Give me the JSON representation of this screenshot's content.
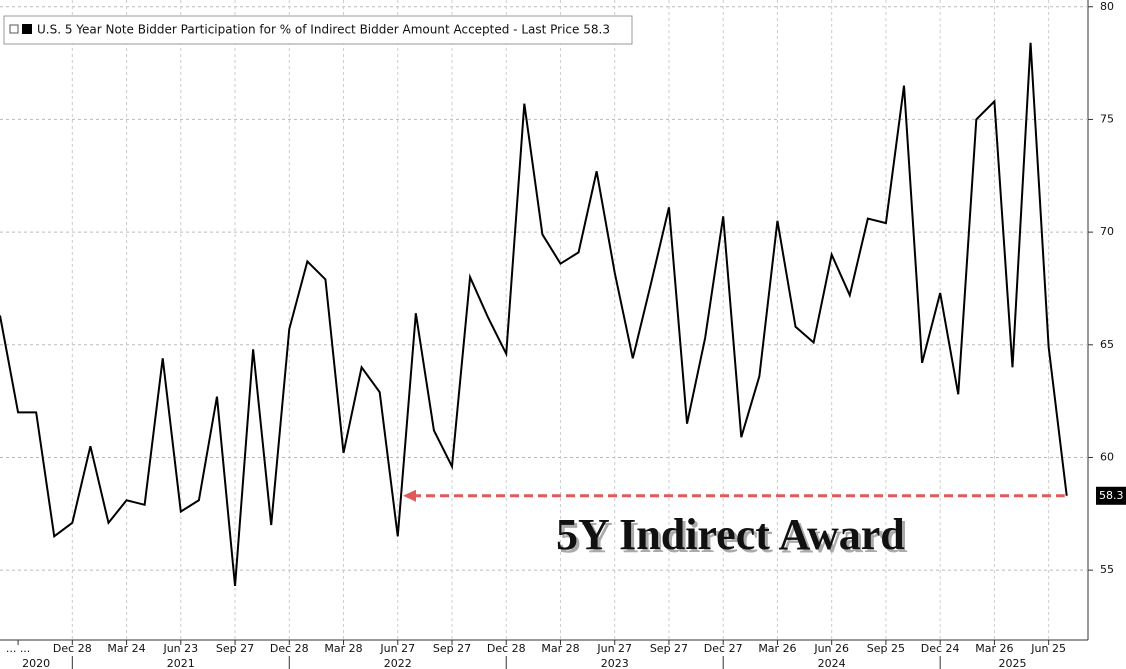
{
  "chart_data": {
    "type": "line",
    "series": [
      {
        "name": "U.S. 5 Year Note Bidder Participation for % of Indirect Bidder Amount Accepted - Last Price 58.3",
        "color": "#000000",
        "values": [
          66.3,
          62.0,
          62.0,
          56.5,
          57.1,
          60.5,
          57.1,
          58.1,
          57.9,
          64.4,
          57.6,
          58.1,
          62.7,
          54.3,
          64.8,
          57.0,
          65.7,
          68.7,
          67.9,
          60.2,
          64.0,
          62.9,
          56.5,
          66.4,
          61.2,
          59.6,
          68.0,
          66.2,
          64.6,
          75.7,
          69.9,
          68.6,
          69.1,
          72.7,
          68.2,
          64.4,
          67.7,
          71.1,
          61.5,
          65.3,
          70.7,
          60.9,
          63.6,
          70.5,
          65.8,
          65.1,
          69.0,
          67.2,
          70.6,
          70.4,
          76.5,
          64.2,
          67.3,
          62.8,
          75.0,
          75.8,
          64.0,
          78.4,
          64.9,
          58.3
        ]
      }
    ],
    "categories": [
      null,
      "... ...",
      null,
      null,
      "Dec 28",
      null,
      null,
      "Mar 24",
      null,
      null,
      "Jun 23",
      null,
      null,
      "Sep 27",
      null,
      null,
      "Dec 28",
      null,
      null,
      "Mar 28",
      null,
      null,
      "Jun 27",
      null,
      null,
      "Sep 27",
      null,
      null,
      "Dec 28",
      null,
      null,
      "Mar 28",
      null,
      null,
      "Jun 27",
      null,
      null,
      "Sep 27",
      null,
      null,
      "Dec 27",
      null,
      null,
      "Mar 26",
      null,
      null,
      "Jun 26",
      null,
      null,
      "Sep 25",
      null,
      null,
      "Dec 24",
      null,
      null,
      "Mar 26",
      null,
      null,
      "Jun 25",
      null
    ],
    "year_categories": [
      null,
      null,
      "2020",
      null,
      null,
      null,
      null,
      null,
      null,
      null,
      "2021",
      null,
      null,
      null,
      null,
      null,
      null,
      null,
      null,
      null,
      null,
      null,
      "2022",
      null,
      null,
      null,
      null,
      null,
      null,
      null,
      null,
      null,
      null,
      null,
      "2023",
      null,
      null,
      null,
      null,
      null,
      null,
      null,
      null,
      null,
      null,
      null,
      "2024",
      null,
      null,
      null,
      null,
      null,
      null,
      null,
      null,
      null,
      "2025",
      null,
      null,
      null
    ],
    "ylim": [
      51.9,
      80.3
    ],
    "yticks": [
      55,
      60,
      65,
      70,
      75,
      80
    ],
    "grid": true,
    "last_value_label": "58.3",
    "annotation": "5Y Indirect Award",
    "annotation_color": "#e05a5a"
  }
}
